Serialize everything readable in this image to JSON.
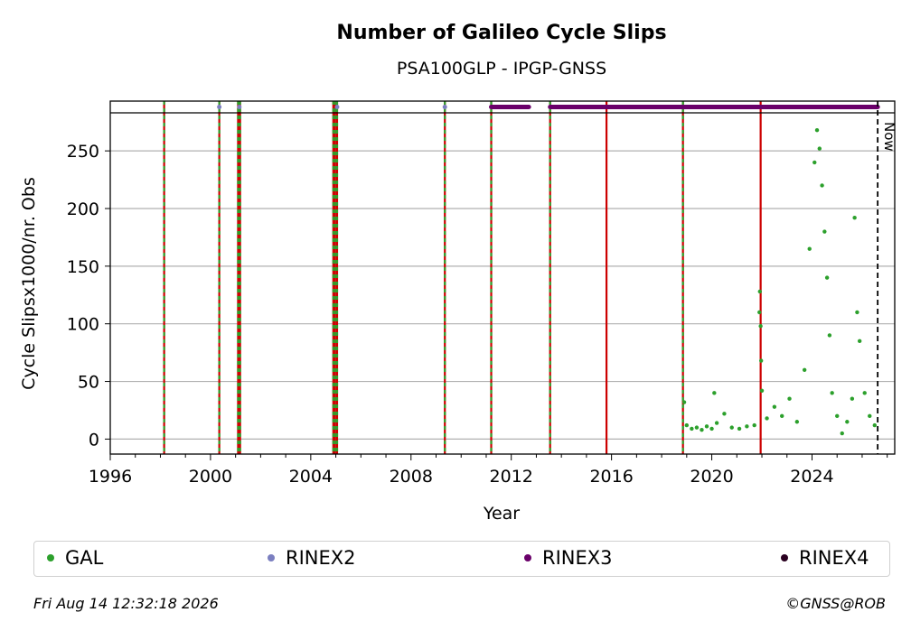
{
  "chart_data": {
    "type": "scatter",
    "title": "Number of Galileo Cycle Slips",
    "subtitle": "PSA100GLP - IPGP-GNSS",
    "xlabel": "Year",
    "ylabel": "Cycle Slipsx1000/nr. Obs",
    "xlim": [
      1996,
      2027.3
    ],
    "ylim": [
      -13,
      283
    ],
    "x_ticks": [
      1996,
      2000,
      2004,
      2008,
      2012,
      2016,
      2020,
      2024
    ],
    "y_ticks": [
      0,
      50,
      100,
      150,
      200,
      250
    ],
    "grid": "horizontal",
    "now_label": "Now",
    "now_x": 2026.62,
    "event_lines": [
      {
        "x": 1998.15,
        "style": "red-green-dashed"
      },
      {
        "x": 2000.35,
        "style": "red-green-dashed"
      },
      {
        "x": 2001.1,
        "style": "red-green-dashed"
      },
      {
        "x": 2001.18,
        "style": "red-green-dashed"
      },
      {
        "x": 2004.9,
        "style": "red-green-dashed"
      },
      {
        "x": 2004.97,
        "style": "red-green-dashed"
      },
      {
        "x": 2005.05,
        "style": "red-green-dashed"
      },
      {
        "x": 2009.35,
        "style": "red-green-dashed"
      },
      {
        "x": 2011.2,
        "style": "red-green-dashed"
      },
      {
        "x": 2013.55,
        "style": "red-green-dashed"
      },
      {
        "x": 2015.8,
        "style": "red"
      },
      {
        "x": 2018.85,
        "style": "red-green-dashed"
      },
      {
        "x": 2021.95,
        "style": "red"
      }
    ],
    "format_markers": {
      "RINEX2": [
        2000.35,
        2001.15,
        2005.05,
        2009.35
      ],
      "RINEX3": [
        [
          2011.2,
          2012.7
        ],
        [
          2013.55,
          2026.62
        ]
      ]
    },
    "series": [
      {
        "name": "GAL",
        "color": "#2ca02c",
        "values": [
          {
            "x": 2018.9,
            "y": 32
          },
          {
            "x": 2019.0,
            "y": 12
          },
          {
            "x": 2019.2,
            "y": 9
          },
          {
            "x": 2019.4,
            "y": 10
          },
          {
            "x": 2019.6,
            "y": 8
          },
          {
            "x": 2019.8,
            "y": 11
          },
          {
            "x": 2020.0,
            "y": 9
          },
          {
            "x": 2020.1,
            "y": 40
          },
          {
            "x": 2020.2,
            "y": 14
          },
          {
            "x": 2020.5,
            "y": 22
          },
          {
            "x": 2020.8,
            "y": 10
          },
          {
            "x": 2021.1,
            "y": 9
          },
          {
            "x": 2021.4,
            "y": 11
          },
          {
            "x": 2021.7,
            "y": 12
          },
          {
            "x": 2021.9,
            "y": 110
          },
          {
            "x": 2021.92,
            "y": 128
          },
          {
            "x": 2021.95,
            "y": 98
          },
          {
            "x": 2021.97,
            "y": 68
          },
          {
            "x": 2022.0,
            "y": 42
          },
          {
            "x": 2022.2,
            "y": 18
          },
          {
            "x": 2022.5,
            "y": 28
          },
          {
            "x": 2022.8,
            "y": 20
          },
          {
            "x": 2023.1,
            "y": 35
          },
          {
            "x": 2023.4,
            "y": 15
          },
          {
            "x": 2023.7,
            "y": 60
          },
          {
            "x": 2023.9,
            "y": 165
          },
          {
            "x": 2024.1,
            "y": 240
          },
          {
            "x": 2024.2,
            "y": 268
          },
          {
            "x": 2024.3,
            "y": 252
          },
          {
            "x": 2024.4,
            "y": 220
          },
          {
            "x": 2024.5,
            "y": 180
          },
          {
            "x": 2024.6,
            "y": 140
          },
          {
            "x": 2024.7,
            "y": 90
          },
          {
            "x": 2024.8,
            "y": 40
          },
          {
            "x": 2025.0,
            "y": 20
          },
          {
            "x": 2025.2,
            "y": 5
          },
          {
            "x": 2025.4,
            "y": 15
          },
          {
            "x": 2025.6,
            "y": 35
          },
          {
            "x": 2025.7,
            "y": 192
          },
          {
            "x": 2025.8,
            "y": 110
          },
          {
            "x": 2025.9,
            "y": 85
          },
          {
            "x": 2026.1,
            "y": 40
          },
          {
            "x": 2026.3,
            "y": 20
          },
          {
            "x": 2026.5,
            "y": 12
          }
        ]
      },
      {
        "name": "RINEX2",
        "color": "#7b7fc0",
        "values": []
      },
      {
        "name": "RINEX3",
        "color": "#6a006a",
        "values": []
      },
      {
        "name": "RINEX4",
        "color": "#2a0020",
        "values": []
      }
    ]
  },
  "legend": [
    {
      "label": "GAL",
      "color": "#2ca02c"
    },
    {
      "label": "RINEX2",
      "color": "#7b7fc0"
    },
    {
      "label": "RINEX3",
      "color": "#6a006a"
    },
    {
      "label": "RINEX4",
      "color": "#2a0020"
    }
  ],
  "footer": {
    "timestamp": "Fri Aug 14 12:32:18 2026",
    "copyright": "©GNSS@ROB"
  }
}
